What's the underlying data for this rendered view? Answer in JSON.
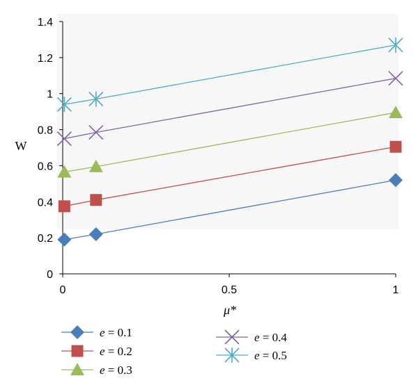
{
  "chart_data": {
    "type": "line",
    "xlabel": "μ*",
    "ylabel": "W",
    "xlim": [
      0,
      1
    ],
    "ylim": [
      0,
      1.4
    ],
    "x_ticks": [
      "0",
      "0.5",
      "1"
    ],
    "y_ticks": [
      "0",
      "0.2",
      "0.4",
      "0.6",
      "0.8",
      "1",
      "1.2",
      "1.4"
    ],
    "grid": false,
    "legend_position": "bottom-left",
    "series": [
      {
        "name": "e = 0.1",
        "label_var": "e",
        "label_rest": " = 0.1",
        "marker": "diamond",
        "color": "#4a7ebb",
        "points": [
          [
            0.005,
            0.19
          ],
          [
            0.1,
            0.22
          ],
          [
            1.0,
            0.52
          ]
        ]
      },
      {
        "name": "e = 0.2",
        "label_var": "e",
        "label_rest": " = 0.2",
        "marker": "square",
        "color": "#c0504d",
        "points": [
          [
            0.005,
            0.375
          ],
          [
            0.1,
            0.41
          ],
          [
            1.0,
            0.705
          ]
        ]
      },
      {
        "name": "e = 0.3",
        "label_var": "e",
        "label_rest": " = 0.3",
        "marker": "triangle",
        "color": "#9bbb59",
        "points": [
          [
            0.005,
            0.565
          ],
          [
            0.1,
            0.595
          ],
          [
            1.0,
            0.895
          ]
        ]
      },
      {
        "name": "e = 0.4",
        "label_var": "e",
        "label_rest": " = 0.4",
        "marker": "x",
        "color": "#8064a2",
        "points": [
          [
            0.005,
            0.75
          ],
          [
            0.1,
            0.785
          ],
          [
            1.0,
            1.085
          ]
        ]
      },
      {
        "name": "e = 0.5",
        "label_var": "e",
        "label_rest": " = 0.5",
        "marker": "star",
        "color": "#4bacc6",
        "points": [
          [
            0.005,
            0.94
          ],
          [
            0.1,
            0.97
          ],
          [
            1.0,
            1.27
          ]
        ]
      }
    ]
  }
}
